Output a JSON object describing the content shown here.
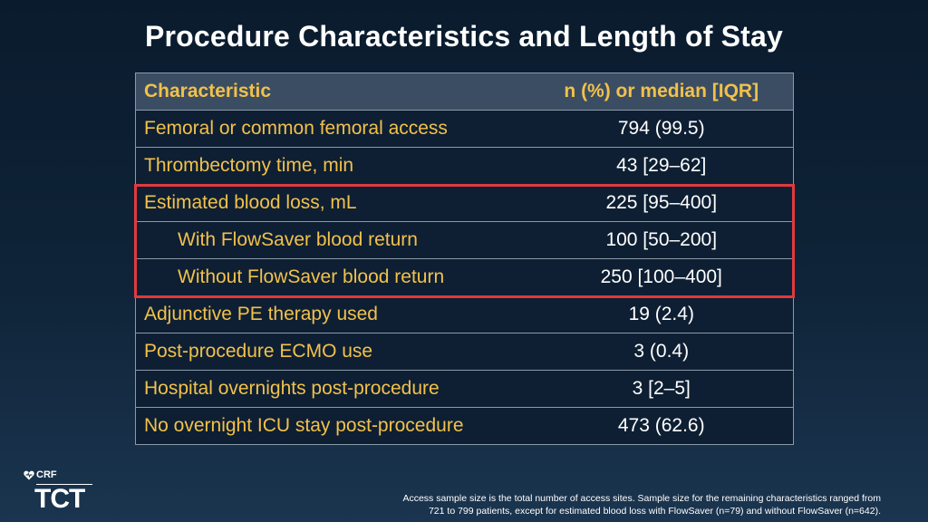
{
  "title": "Procedure Characteristics and Length of Stay",
  "table": {
    "headers": [
      "Characteristic",
      "n (%) or median [IQR]"
    ],
    "rows": [
      {
        "label": "Femoral or common femoral access",
        "value": "794 (99.5)"
      },
      {
        "label": "Thrombectomy time, min",
        "value": "43 [29–62]"
      },
      {
        "label": "Estimated blood loss, mL",
        "value": "225 [95–400]"
      },
      {
        "label": "With FlowSaver blood return",
        "value": "100 [50–200]"
      },
      {
        "label": "Without FlowSaver blood return",
        "value": "250 [100–400]"
      },
      {
        "label": "Adjunctive PE therapy used",
        "value": "19 (2.4)"
      },
      {
        "label": "Post-procedure ECMO use",
        "value": "3 (0.4)"
      },
      {
        "label": "Hospital overnights post-procedure",
        "value": "3 [2–5]"
      },
      {
        "label": "No overnight ICU stay post-procedure",
        "value": "473 (62.6)"
      }
    ]
  },
  "highlight_color": "#e03a3e",
  "accent_color": "#f2c14a",
  "logo": {
    "crf": "CRF",
    "tct": "TCT",
    "icon": "heart-icon"
  },
  "footnote": {
    "line1": "Access sample size is the total number of access sites. Sample size for the remaining characteristics ranged from",
    "line2": "721 to 799 patients, except for estimated blood loss with FlowSaver (n=79) and without FlowSaver (n=642)."
  }
}
